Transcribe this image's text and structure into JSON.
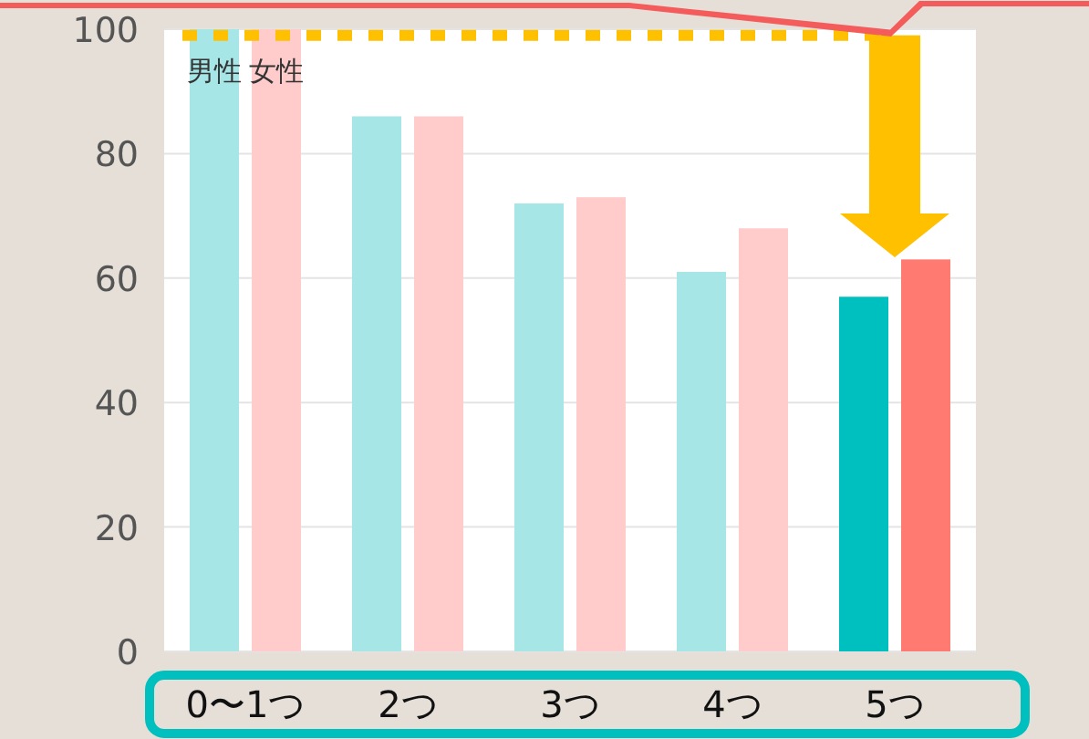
{
  "chart_data": {
    "type": "bar",
    "categories": [
      "0〜1つ",
      "2つ",
      "3つ",
      "4つ",
      "5つ"
    ],
    "series": [
      {
        "name": "男性",
        "colors": [
          "#a6e6e6",
          "#a6e6e6",
          "#a6e6e6",
          "#a6e6e6",
          "#00bfbf"
        ],
        "values": [
          100,
          86,
          72,
          61,
          57
        ]
      },
      {
        "name": "女性",
        "colors": [
          "#ffcccb",
          "#ffcccb",
          "#ffcccb",
          "#ffcccb",
          "#ff7b72"
        ],
        "values": [
          100,
          86,
          73,
          68,
          63
        ]
      }
    ],
    "ylim": [
      0,
      100
    ],
    "yticks": [
      0,
      20,
      40,
      60,
      80,
      100
    ],
    "grid": "y",
    "ref_lines": [
      {
        "axis": "y",
        "value": 99,
        "color": "#ffc000",
        "line_style": "dotted"
      }
    ]
  }
}
